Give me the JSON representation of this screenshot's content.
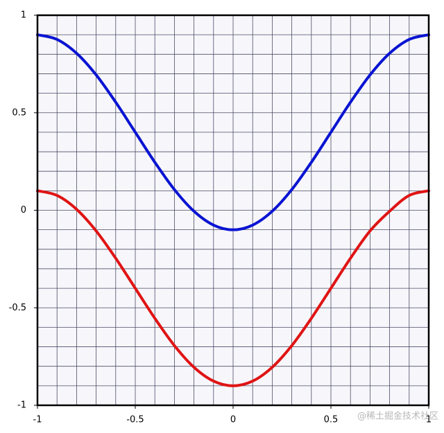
{
  "chart_data": {
    "type": "line",
    "x": [
      -1,
      -0.9,
      -0.8,
      -0.7,
      -0.6,
      -0.5,
      -0.4,
      -0.3,
      -0.2,
      -0.1,
      0,
      0.1,
      0.2,
      0.3,
      0.4,
      0.5,
      0.6,
      0.7,
      0.8,
      0.9,
      1
    ],
    "series": [
      {
        "color": "#0a14d2",
        "values": [
          0.9,
          0.876,
          0.805,
          0.694,
          0.554,
          0.4,
          0.246,
          0.106,
          -0.005,
          -0.076,
          -0.1,
          -0.076,
          -0.005,
          0.106,
          0.246,
          0.4,
          0.554,
          0.694,
          0.805,
          0.876,
          0.9
        ]
      },
      {
        "color": "#e01414",
        "values": [
          0.1,
          0.076,
          0.005,
          -0.106,
          -0.246,
          -0.4,
          -0.554,
          -0.694,
          -0.805,
          -0.876,
          -0.9,
          -0.876,
          -0.805,
          -0.694,
          -0.554,
          -0.4,
          -0.246,
          -0.106,
          -0.005,
          0.076,
          0.1
        ]
      }
    ],
    "xlim": [
      -1,
      1
    ],
    "ylim": [
      -1,
      1
    ],
    "xticks": [
      -1,
      -0.5,
      0,
      0.5,
      1
    ],
    "yticks": [
      -1,
      -0.5,
      0,
      0.5,
      1
    ],
    "xgrid": [
      -1,
      -0.9,
      -0.8,
      -0.7,
      -0.6,
      -0.5,
      -0.4,
      -0.3,
      -0.2,
      -0.1,
      0,
      0.1,
      0.2,
      0.3,
      0.4,
      0.5,
      0.6,
      0.7,
      0.8,
      0.9,
      1
    ],
    "ygrid": [
      -1,
      -0.9,
      -0.8,
      -0.7,
      -0.6,
      -0.5,
      -0.4,
      -0.3,
      -0.2,
      -0.1,
      0,
      0.1,
      0.2,
      0.3,
      0.4,
      0.5,
      0.6,
      0.7,
      0.8,
      0.9,
      1
    ],
    "grid": true
  },
  "watermark": "@稀土掘金技术社区"
}
